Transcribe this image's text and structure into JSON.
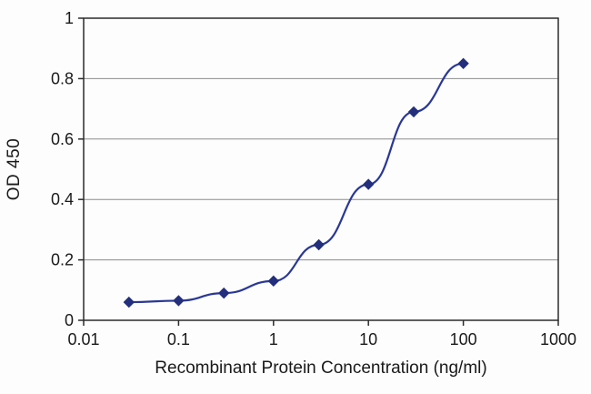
{
  "chart_data": {
    "type": "line",
    "title": "",
    "xlabel": "Recombinant Protein Concentration (ng/ml)",
    "ylabel": "OD 450",
    "x_scale": "log",
    "x": [
      0.03,
      0.1,
      0.3,
      1,
      3,
      10,
      30,
      100
    ],
    "y": [
      0.06,
      0.065,
      0.09,
      0.13,
      0.25,
      0.45,
      0.69,
      0.85
    ],
    "xlim": [
      0.01,
      1000
    ],
    "ylim": [
      0,
      1
    ],
    "x_ticks": [
      {
        "value": 0.01,
        "label": "0.01"
      },
      {
        "value": 0.1,
        "label": "0.1"
      },
      {
        "value": 1,
        "label": "1"
      },
      {
        "value": 10,
        "label": "10"
      },
      {
        "value": 100,
        "label": "100"
      },
      {
        "value": 1000,
        "label": "1000"
      }
    ],
    "y_ticks": [
      {
        "value": 0,
        "label": "0"
      },
      {
        "value": 0.2,
        "label": "0.2"
      },
      {
        "value": 0.4,
        "label": "0.4"
      },
      {
        "value": 0.6,
        "label": "0.6"
      },
      {
        "value": 0.8,
        "label": "0.8"
      },
      {
        "value": 1,
        "label": "1"
      }
    ],
    "grid": "horizontal",
    "legend": "none",
    "marker": "diamond",
    "colors": {
      "line": "#293896",
      "marker": "#232f7c",
      "grid": "#8c8c8c",
      "axis": "#2b2b2b",
      "text": "#1a1a1a",
      "plot_bg": "#fdfdfd"
    }
  }
}
